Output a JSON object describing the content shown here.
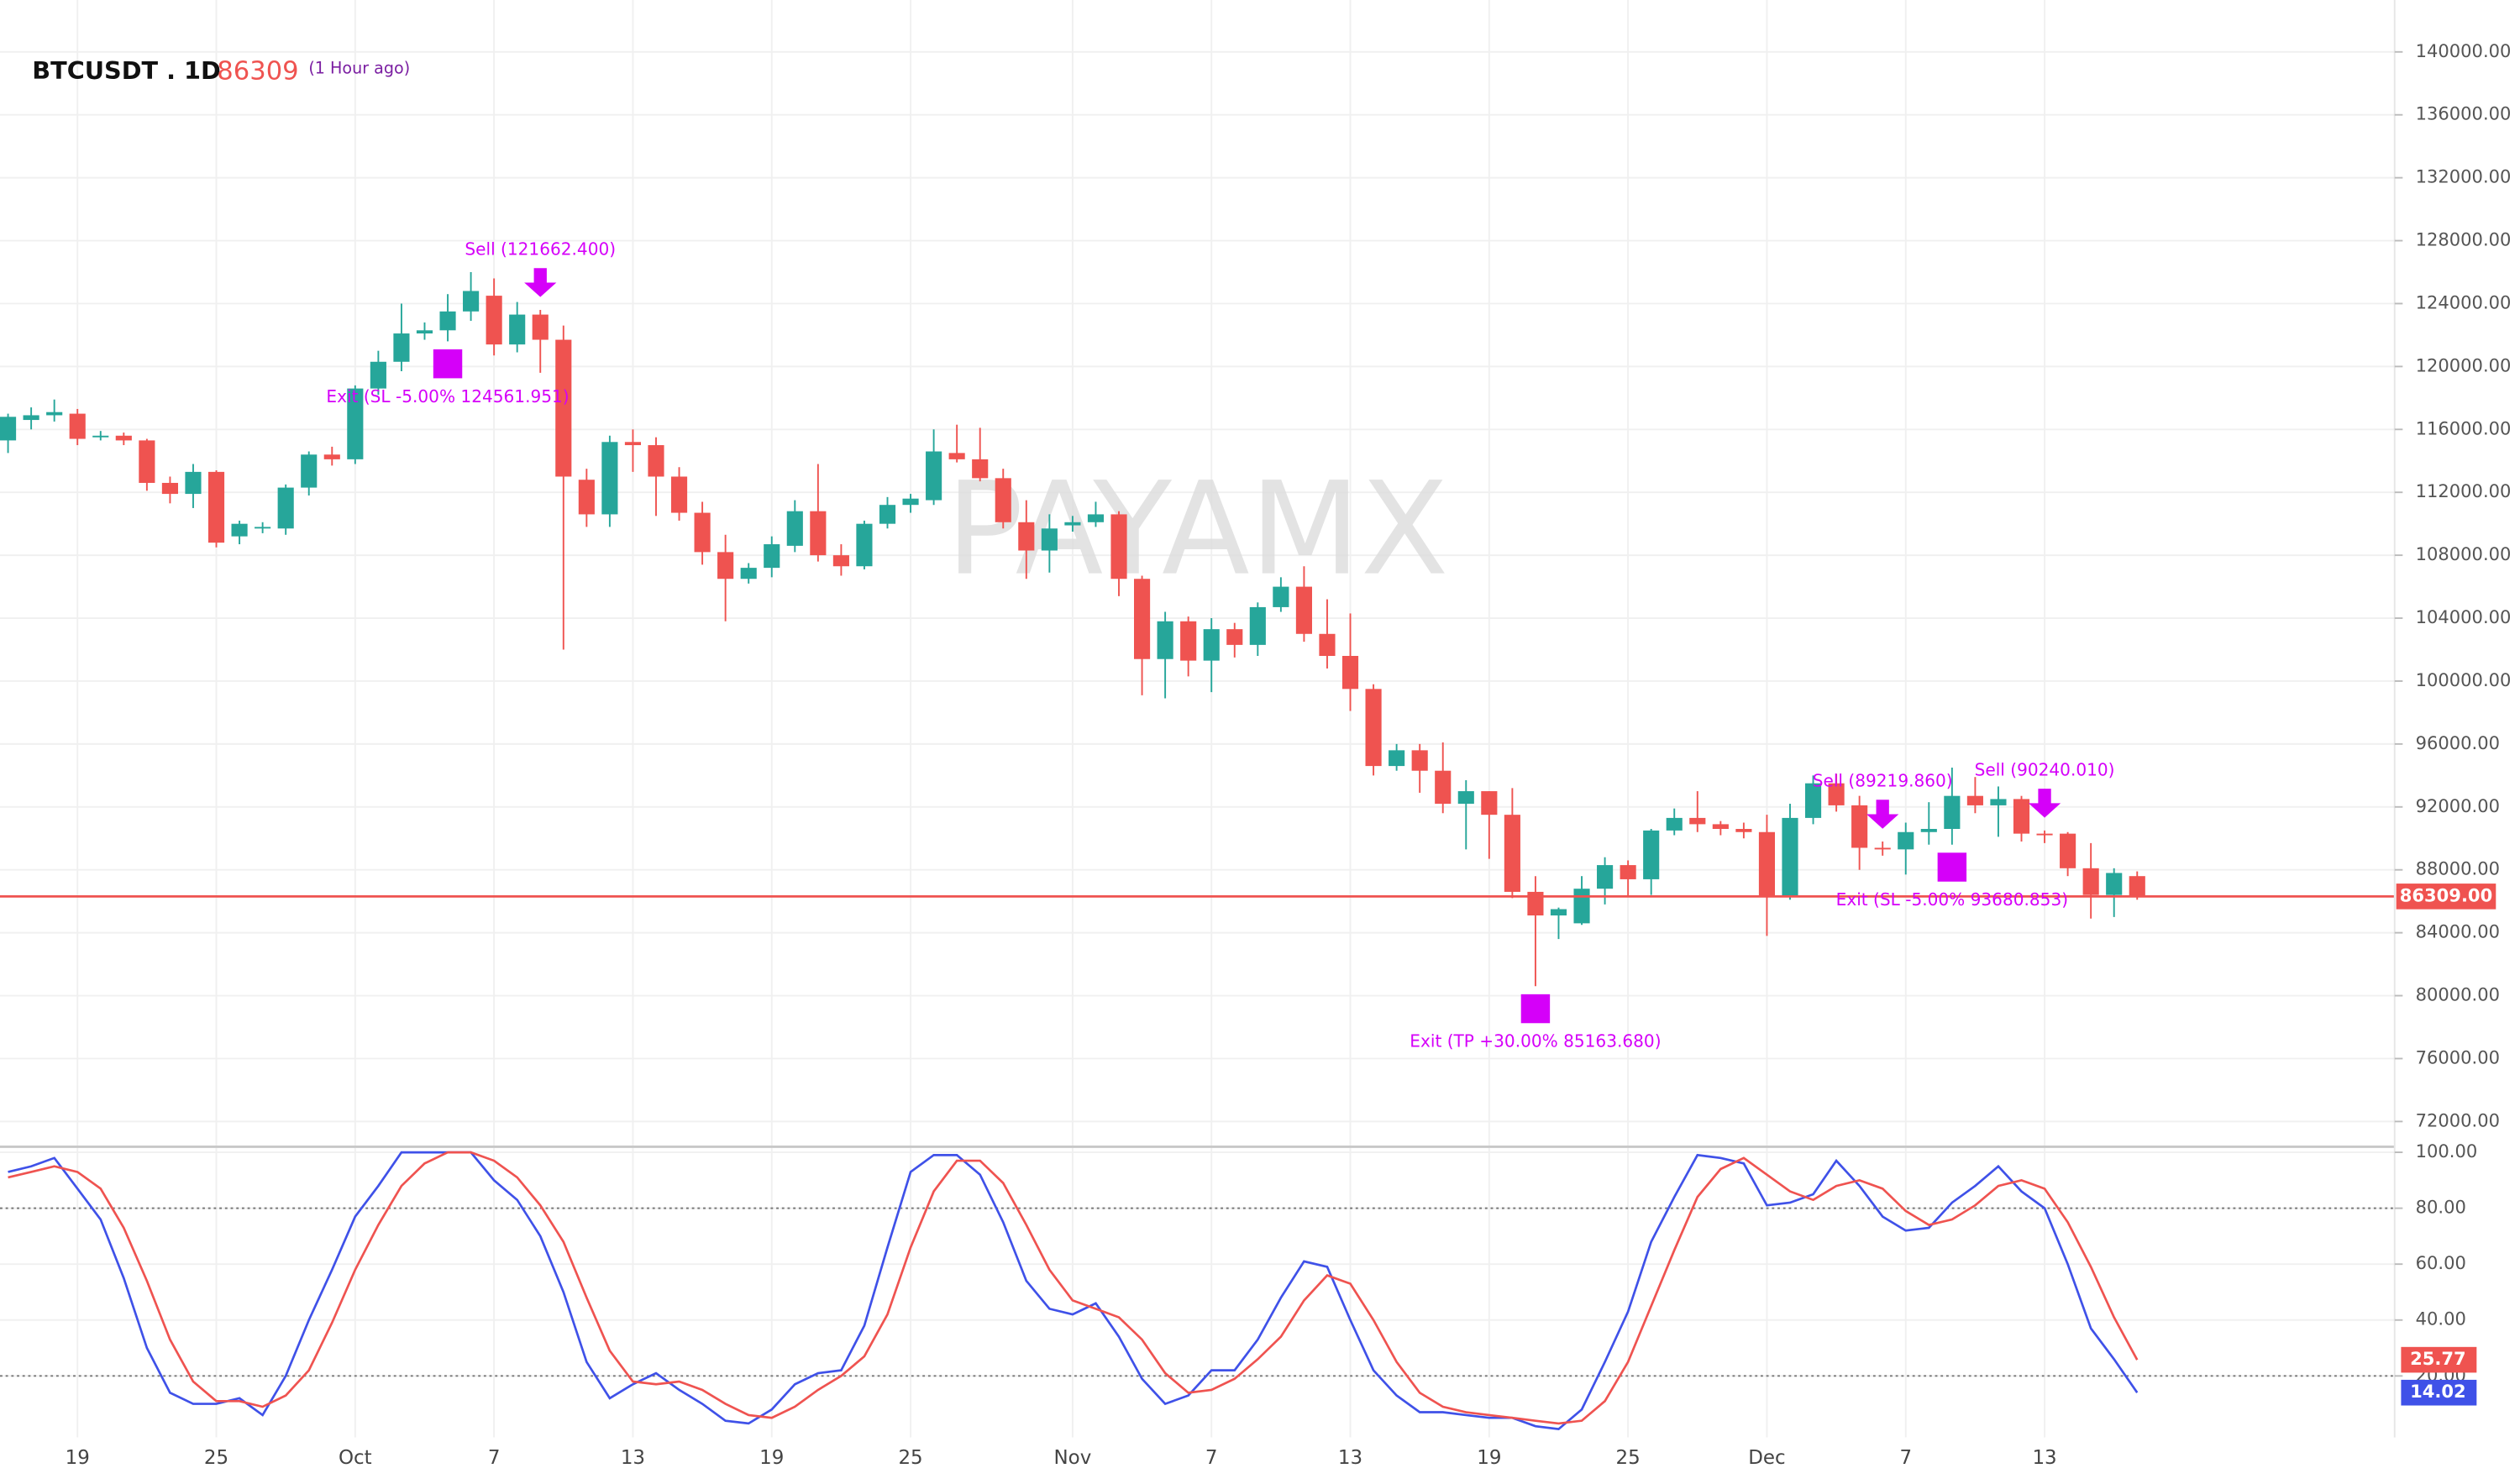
{
  "chart_data": [
    {
      "type": "candlestick",
      "title": "BTCUSDT . 1D",
      "subtitle": "(1 Hour ago)",
      "watermark": "PAYAMX",
      "x": [
        "Sep 16",
        "Sep 17",
        "Sep 18",
        "Sep 19",
        "Sep 20",
        "Sep 21",
        "Sep 22",
        "Sep 23",
        "Sep 24",
        "Sep 25",
        "Sep 26",
        "Sep 27",
        "Sep 28",
        "Sep 29",
        "Sep 30",
        "Oct 1",
        "Oct 2",
        "Oct 3",
        "Oct 4",
        "Oct 5",
        "Oct 6",
        "Oct 7",
        "Oct 8",
        "Oct 9",
        "Oct 10",
        "Oct 11",
        "Oct 12",
        "Oct 13",
        "Oct 14",
        "Oct 15",
        "Oct 16",
        "Oct 17",
        "Oct 18",
        "Oct 19",
        "Oct 20",
        "Oct 21",
        "Oct 22",
        "Oct 23",
        "Oct 24",
        "Oct 25",
        "Oct 26",
        "Oct 27",
        "Oct 28",
        "Oct 29",
        "Oct 30",
        "Oct 31",
        "Nov 1",
        "Nov 2",
        "Nov 3",
        "Nov 4",
        "Nov 5",
        "Nov 6",
        "Nov 7",
        "Nov 8",
        "Nov 9",
        "Nov 10",
        "Nov 11",
        "Nov 12",
        "Nov 13",
        "Nov 14",
        "Nov 15",
        "Nov 16",
        "Nov 17",
        "Nov 18",
        "Nov 19",
        "Nov 20",
        "Nov 21",
        "Nov 22",
        "Nov 23",
        "Nov 24",
        "Nov 25",
        "Nov 26",
        "Nov 27",
        "Nov 28",
        "Nov 29",
        "Nov 30",
        "Dec 1",
        "Dec 2",
        "Dec 3",
        "Dec 4",
        "Dec 5",
        "Dec 6",
        "Dec 7",
        "Dec 8",
        "Dec 9",
        "Dec 10",
        "Dec 11",
        "Dec 12",
        "Dec 13",
        "Dec 14",
        "Dec 15",
        "Dec 16",
        "Dec 17"
      ],
      "open": [
        115300,
        116600,
        116900,
        117000,
        115600,
        115600,
        115300,
        112600,
        111900,
        113300,
        109200,
        109800,
        109700,
        112300,
        114400,
        114100,
        118600,
        120300,
        122100,
        122300,
        123500,
        124500,
        121400,
        123300,
        121700,
        112800,
        110600,
        115200,
        115000,
        113000,
        110700,
        108200,
        106500,
        107200,
        108600,
        110800,
        108000,
        107300,
        110000,
        111200,
        111500,
        114500,
        114100,
        112900,
        110100,
        108300,
        109900,
        110100,
        110600,
        106500,
        101400,
        103800,
        101300,
        103300,
        102300,
        104700,
        106000,
        103000,
        101600,
        99500,
        94600,
        95600,
        94300,
        92200,
        93000,
        91500,
        86600,
        85100,
        84600,
        86800,
        88300,
        87400,
        90500,
        91300,
        90900,
        90600,
        90400,
        86300,
        91300,
        93500,
        92100,
        89400,
        89300,
        90400,
        90600,
        92700,
        92100,
        92500,
        90300,
        90300,
        88100,
        86400,
        87600
      ],
      "high": [
        117000,
        117400,
        117900,
        117300,
        115900,
        115800,
        115400,
        113000,
        113800,
        113400,
        110200,
        110100,
        112500,
        114600,
        114900,
        118800,
        121000,
        124000,
        122800,
        124600,
        126000,
        125600,
        124100,
        123600,
        122600,
        113500,
        115600,
        116000,
        115500,
        113600,
        111400,
        109300,
        107500,
        109200,
        111500,
        113800,
        108700,
        110200,
        111700,
        111900,
        116000,
        116300,
        116100,
        113500,
        111500,
        110600,
        110500,
        111400,
        110800,
        106700,
        104400,
        104100,
        104000,
        103700,
        105000,
        106600,
        107300,
        105200,
        104300,
        99800,
        96000,
        96000,
        96100,
        93700,
        93000,
        93200,
        87600,
        85600,
        87600,
        88800,
        88600,
        90600,
        91900,
        93000,
        91100,
        91000,
        91500,
        92200,
        94000,
        94100,
        92700,
        89800,
        91000,
        92300,
        94500,
        93900,
        93300,
        92700,
        90500,
        90400,
        89700,
        88100,
        87900
      ],
      "low": [
        114500,
        116000,
        116500,
        115000,
        115300,
        115000,
        112100,
        111300,
        111000,
        108500,
        108700,
        109400,
        109300,
        111800,
        113700,
        113800,
        118200,
        119700,
        121700,
        121600,
        122900,
        120700,
        120900,
        119600,
        102000,
        109800,
        109800,
        113300,
        110500,
        110200,
        107400,
        103800,
        106200,
        106600,
        108200,
        107600,
        106700,
        107100,
        109700,
        110700,
        111200,
        113900,
        112700,
        109700,
        106500,
        106900,
        109500,
        109800,
        105400,
        99100,
        98900,
        100300,
        99300,
        101500,
        101600,
        104400,
        102500,
        100800,
        98100,
        94000,
        94300,
        92900,
        91600,
        89300,
        88700,
        86200,
        80600,
        83600,
        84500,
        85800,
        86300,
        86400,
        90200,
        90400,
        90200,
        90000,
        83800,
        86100,
        90900,
        91700,
        88000,
        88900,
        87700,
        89600,
        89600,
        91600,
        90100,
        89800,
        89700,
        87600,
        84900,
        85000,
        86100
      ],
      "close": [
        116800,
        116900,
        117100,
        115400,
        115600,
        115300,
        112600,
        111900,
        113300,
        108800,
        110000,
        109800,
        112300,
        114400,
        114100,
        118600,
        120300,
        122100,
        122300,
        123500,
        124800,
        121400,
        123300,
        121700,
        113000,
        110600,
        115200,
        115000,
        113000,
        110700,
        108200,
        106500,
        107200,
        108700,
        110800,
        108000,
        107300,
        110000,
        111200,
        111600,
        114600,
        114100,
        112900,
        110100,
        108300,
        109700,
        110100,
        110600,
        106500,
        101400,
        103800,
        101300,
        103300,
        102300,
        104700,
        106000,
        103000,
        101600,
        99500,
        94600,
        95600,
        94300,
        92200,
        93000,
        91500,
        86600,
        85100,
        85500,
        86800,
        88300,
        87400,
        90500,
        91300,
        90900,
        90600,
        90400,
        86300,
        91300,
        93500,
        92100,
        89400,
        89300,
        90400,
        90600,
        92700,
        92100,
        92500,
        90300,
        90200,
        88100,
        86400,
        87800,
        86309
      ],
      "up_color": "#26a69a",
      "down_color": "#ef5350",
      "ylim": [
        70600,
        143300
      ],
      "yticks": [
        {
          "value": 72000,
          "label": "72000.00"
        },
        {
          "value": 76000,
          "label": "76000.00"
        },
        {
          "value": 80000,
          "label": "80000.00"
        },
        {
          "value": 84000,
          "label": "84000.00"
        },
        {
          "value": 88000,
          "label": "88000.00"
        },
        {
          "value": 92000,
          "label": "92000.00"
        },
        {
          "value": 96000,
          "label": "96000.00"
        },
        {
          "value": 100000,
          "label": "100000.00"
        },
        {
          "value": 104000,
          "label": "104000.00"
        },
        {
          "value": 108000,
          "label": "108000.00"
        },
        {
          "value": 112000,
          "label": "112000.00"
        },
        {
          "value": 116000,
          "label": "116000.00"
        },
        {
          "value": 120000,
          "label": "120000.00"
        },
        {
          "value": 124000,
          "label": "124000.00"
        },
        {
          "value": 128000,
          "label": "128000.00"
        },
        {
          "value": 132000,
          "label": "132000.00"
        },
        {
          "value": 136000,
          "label": "136000.00"
        },
        {
          "value": 140000,
          "label": "140000.00"
        }
      ],
      "xticks": [
        {
          "value": "Sep 19",
          "label": "19"
        },
        {
          "value": "Sep 25",
          "label": "25"
        },
        {
          "value": "Oct 1",
          "label": "Oct"
        },
        {
          "value": "Oct 7",
          "label": "7"
        },
        {
          "value": "Oct 13",
          "label": "13"
        },
        {
          "value": "Oct 19",
          "label": "19"
        },
        {
          "value": "Oct 25",
          "label": "25"
        },
        {
          "value": "Nov 1",
          "label": "Nov"
        },
        {
          "value": "Nov 7",
          "label": "7"
        },
        {
          "value": "Nov 13",
          "label": "13"
        },
        {
          "value": "Nov 19",
          "label": "19"
        },
        {
          "value": "Nov 25",
          "label": "25"
        },
        {
          "value": "Dec 1",
          "label": "Dec"
        },
        {
          "value": "Dec 7",
          "label": "7"
        },
        {
          "value": "Dec 13",
          "label": "13"
        }
      ],
      "grid": true,
      "price_line": {
        "value": 86309,
        "label": "86309.00",
        "color": "#ef5350"
      },
      "annotations": [
        {
          "text": "Sell (121662.400)",
          "x": "Oct 9",
          "kind": "sell"
        },
        {
          "text": "Exit (SL -5.00% 124561.951)",
          "x": "Oct 5",
          "kind": "exit"
        },
        {
          "text": "Exit (TP +30.00% 85163.680)",
          "x": "Nov 21",
          "kind": "exit"
        },
        {
          "text": "Sell (89219.860)",
          "x": "Dec 6",
          "kind": "sell"
        },
        {
          "text": "Sell (90240.010)",
          "x": "Dec 13",
          "kind": "sell"
        },
        {
          "text": "Exit (SL -5.00% 93680.853)",
          "x": "Dec 9",
          "kind": "exit"
        }
      ]
    },
    {
      "type": "line",
      "series": [
        {
          "color": "#3f51e8",
          "values": [
            93,
            95,
            98,
            87,
            76,
            55,
            30,
            14,
            10,
            10,
            12,
            6,
            20,
            40,
            58,
            77,
            88,
            100,
            100,
            100,
            100,
            90,
            83,
            70,
            50,
            25,
            12,
            17,
            21,
            15,
            10,
            4,
            3,
            8,
            17,
            21,
            22,
            38,
            66,
            93,
            99,
            99,
            92,
            75,
            54,
            44,
            42,
            46,
            34,
            19,
            10,
            13,
            22,
            22,
            33,
            48,
            61,
            59,
            40,
            22,
            13,
            7,
            7,
            6,
            5,
            5,
            2,
            1,
            8,
            25,
            43,
            68,
            84,
            99,
            98,
            96,
            81,
            82,
            85,
            97,
            88,
            77,
            72,
            73,
            82,
            88,
            95,
            86,
            80,
            60,
            37,
            26,
            14.02
          ]
        },
        {
          "color": "#ef5350",
          "values": [
            91,
            93,
            95,
            93,
            87,
            73,
            54,
            33,
            18,
            11,
            11,
            9,
            13,
            22,
            39,
            58,
            74,
            88,
            96,
            100,
            100,
            97,
            91,
            81,
            68,
            48,
            29,
            18,
            17,
            18,
            15,
            10,
            6,
            5,
            9,
            15,
            20,
            27,
            42,
            66,
            86,
            97,
            97,
            89,
            74,
            58,
            47,
            44,
            41,
            33,
            21,
            14,
            15,
            19,
            26,
            34,
            47,
            56,
            53,
            40,
            25,
            14,
            9,
            7,
            6,
            5,
            4,
            3,
            4,
            11,
            25,
            45,
            65,
            84,
            94,
            98,
            92,
            86,
            83,
            88,
            90,
            87,
            79,
            74,
            76,
            81,
            88,
            90,
            87,
            75,
            59,
            41,
            25.77
          ]
        }
      ],
      "ylim": [
        -2,
        102
      ],
      "yticks": [
        {
          "value": 20,
          "label": "20.00"
        },
        {
          "value": 40,
          "label": "40.00"
        },
        {
          "value": 60,
          "label": "60.00"
        },
        {
          "value": 80,
          "label": "80.00"
        },
        {
          "value": 100,
          "label": "100.00"
        }
      ],
      "levels": [
        80,
        20
      ]
    }
  ]
}
